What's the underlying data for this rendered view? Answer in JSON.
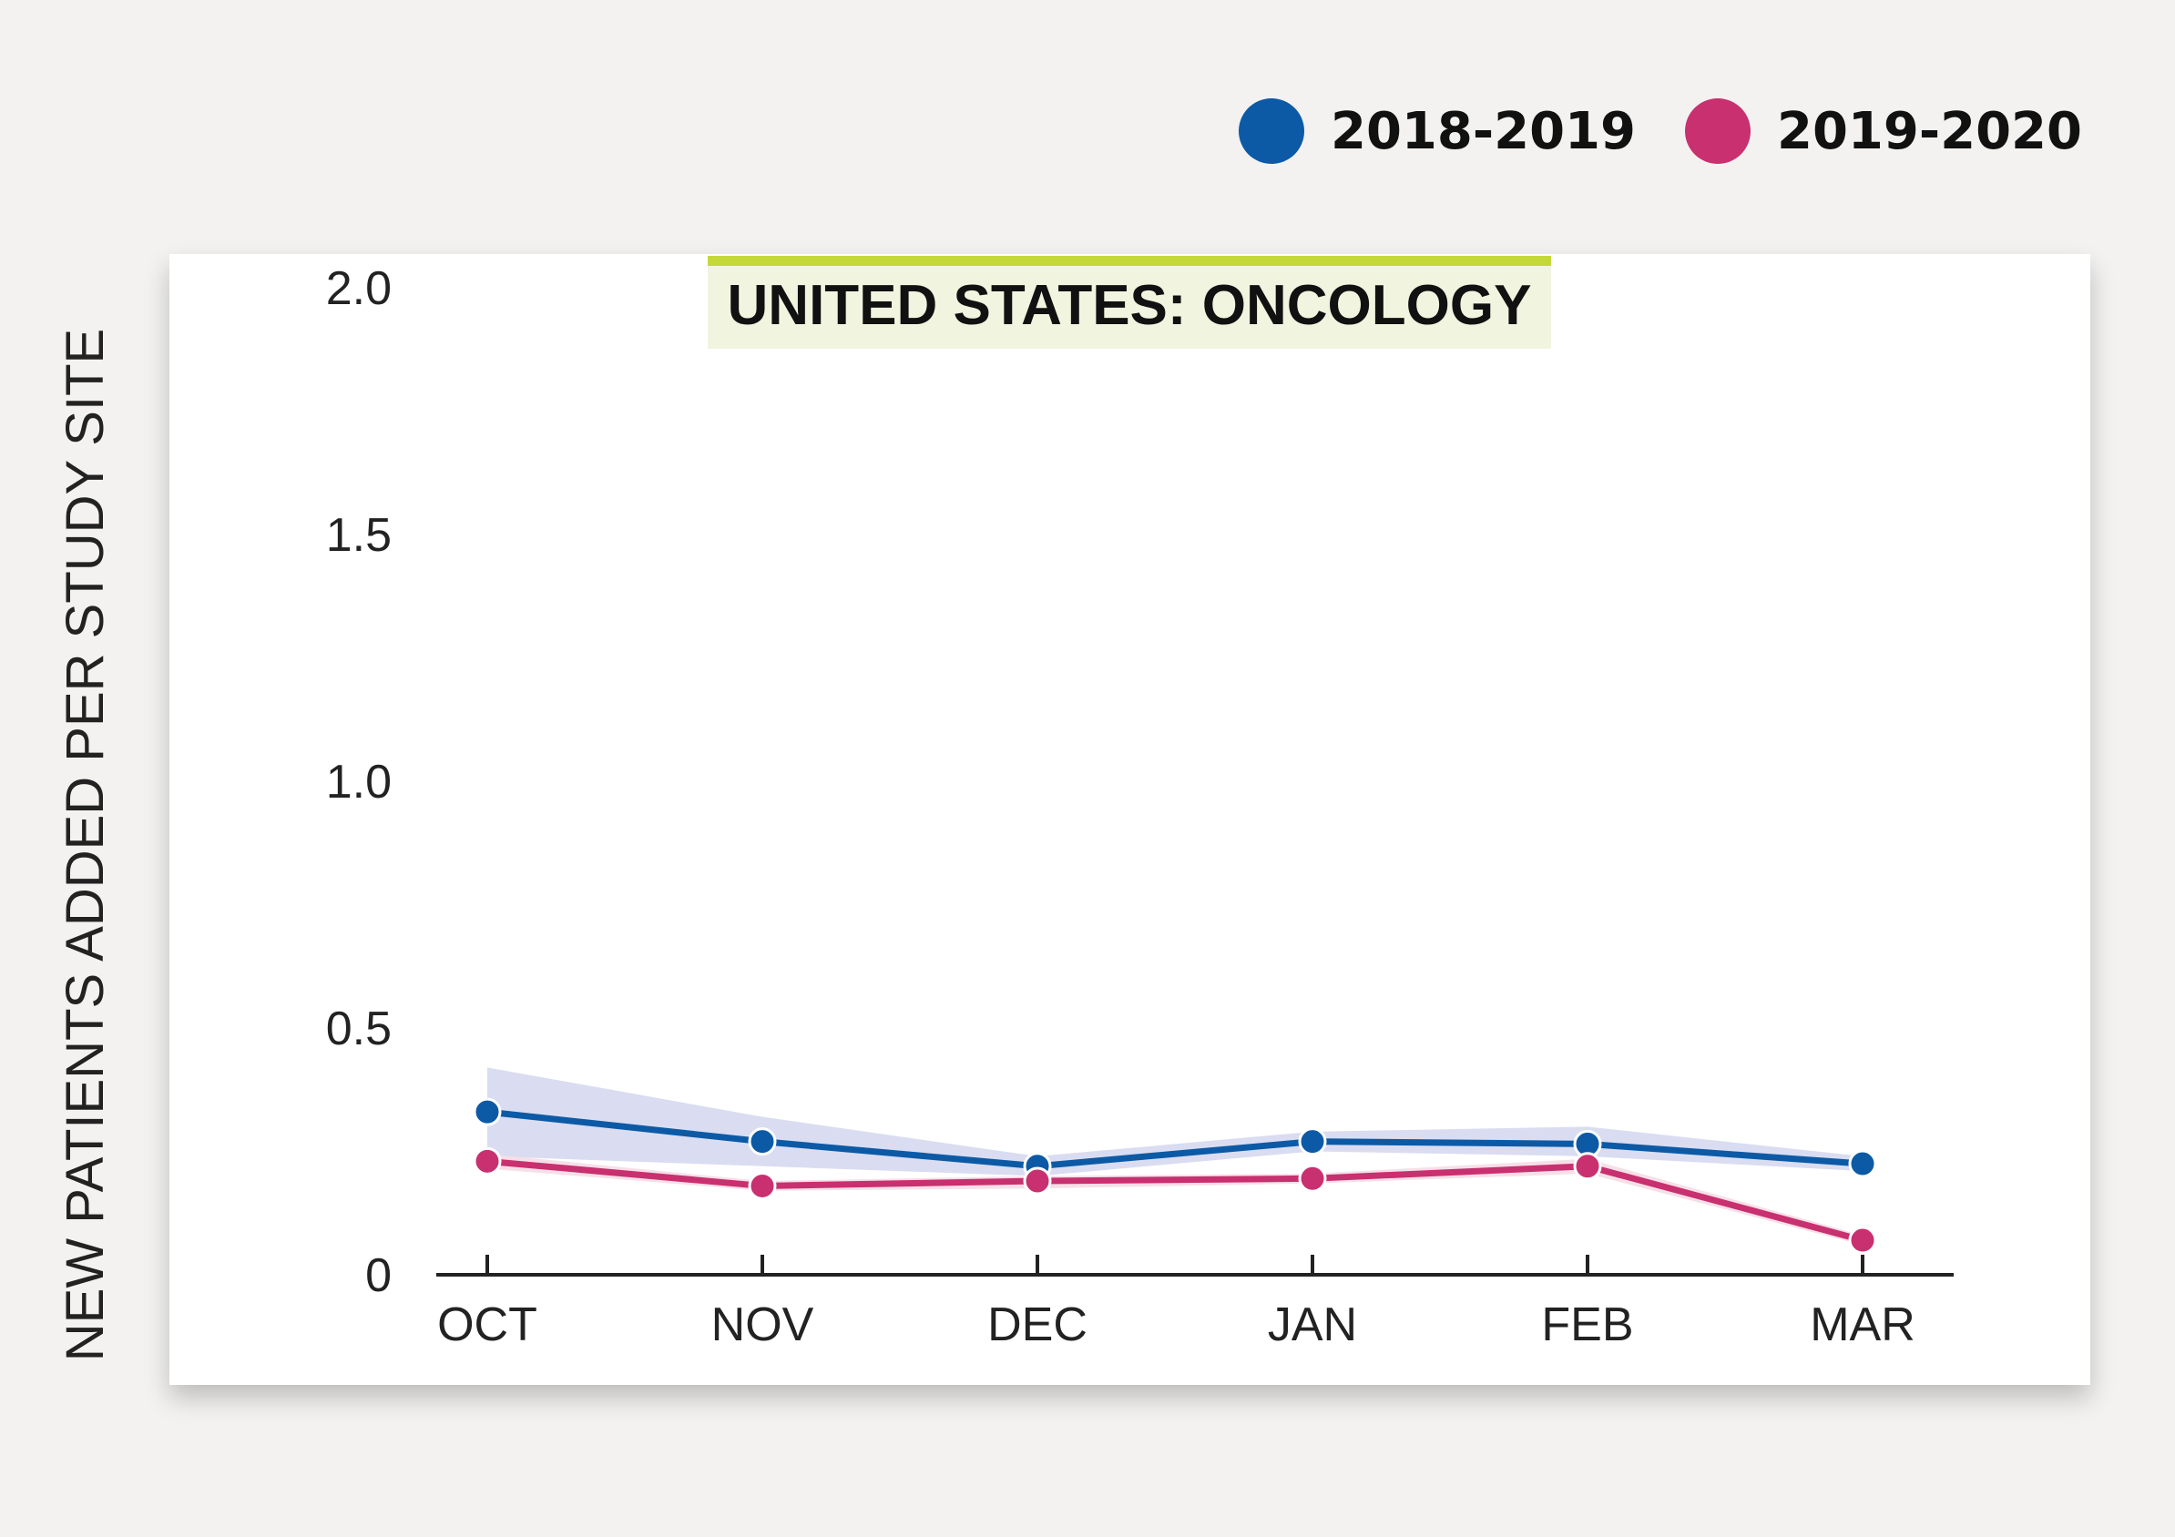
{
  "legend": [
    {
      "label": "2018-2019",
      "color": "#0c5aa6"
    },
    {
      "label": "2019-2020",
      "color": "#c8306f"
    }
  ],
  "chart_data": {
    "type": "line",
    "title": "UNITED STATES: ONCOLOGY",
    "ylabel": "NEW PATIENTS ADDED PER STUDY SITE",
    "xlabel": "",
    "categories": [
      "OCT",
      "NOV",
      "DEC",
      "JAN",
      "FEB",
      "MAR"
    ],
    "ylim": [
      0,
      2.0
    ],
    "yticks": [
      "0",
      "0.5",
      "1.0",
      "1.5",
      "2.0"
    ],
    "ytick_values": [
      0,
      0.5,
      1.0,
      1.5,
      2.0
    ],
    "grid": false,
    "legend_position": "top-right",
    "series": [
      {
        "name": "2018-2019",
        "color": "#0c5aa6",
        "band_color": "#d6d9ef",
        "values": [
          0.33,
          0.27,
          0.22,
          0.27,
          0.265,
          0.225
        ],
        "upper": [
          0.42,
          0.32,
          0.24,
          0.29,
          0.3,
          0.24
        ],
        "lower": [
          0.24,
          0.22,
          0.2,
          0.25,
          0.24,
          0.21
        ]
      },
      {
        "name": "2019-2020",
        "color": "#c8306f",
        "band_color": "#f6dbe5",
        "values": [
          0.23,
          0.18,
          0.19,
          0.195,
          0.22,
          0.07
        ],
        "upper": [
          0.245,
          0.19,
          0.2,
          0.205,
          0.235,
          0.08
        ],
        "lower": [
          0.215,
          0.17,
          0.175,
          0.185,
          0.205,
          0.06
        ]
      }
    ]
  }
}
